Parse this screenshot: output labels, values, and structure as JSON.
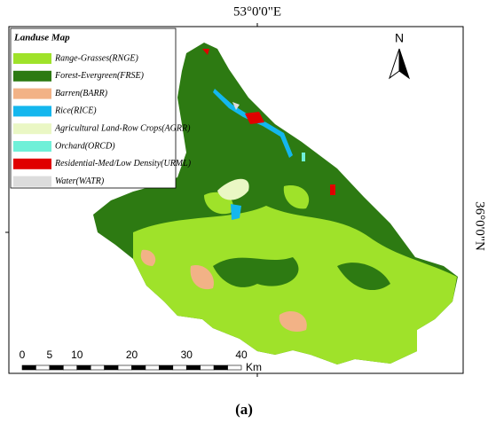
{
  "map": {
    "title": "Landuse Map",
    "legend": [
      {
        "label": "Range-Grasses(RNGE)",
        "color": "#9fe22a"
      },
      {
        "label": "Forest-Evergreen(FRSE)",
        "color": "#2d7a12"
      },
      {
        "label": "Barren(BARR)",
        "color": "#f2b286"
      },
      {
        "label": "Rice(RICE)",
        "color": "#14b7ee"
      },
      {
        "label": "Agricultural Land-Row Crops(AGRR)",
        "color": "#eaf7c4"
      },
      {
        "label": "Orchard(ORCD)",
        "color": "#6ff0d8"
      },
      {
        "label": "Residential-Med/Low Density(URML)",
        "color": "#e00000"
      },
      {
        "label": "Water(WATR)",
        "color": "#dcdcdc"
      }
    ],
    "north_label": "N",
    "longitude_label": "53°0'0\"E",
    "latitude_label": "36°0'0\"N",
    "scale_bar": {
      "ticks": [
        0,
        5,
        10,
        20,
        30,
        40
      ],
      "unit": "Km"
    }
  },
  "caption": "(a)"
}
